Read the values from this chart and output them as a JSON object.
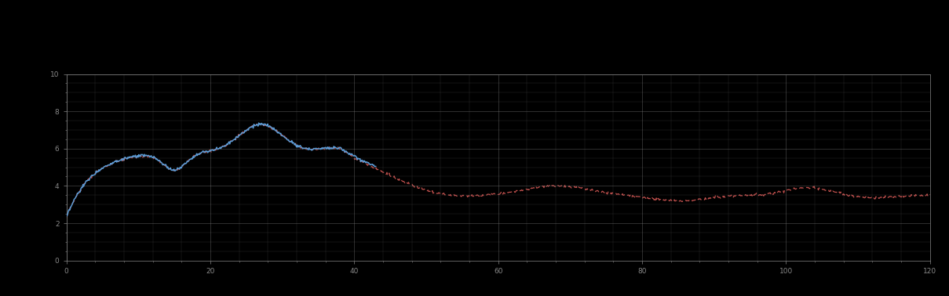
{
  "background_color": "#000000",
  "plot_bg_color": "#000000",
  "grid_color": "#888888",
  "line1_color": "#5b9bd5",
  "line2_color": "#c0504d",
  "figsize": [
    12.09,
    3.78
  ],
  "dpi": 100,
  "xlim": [
    0,
    120
  ],
  "ylim": [
    0,
    10
  ],
  "x_major_tick": 20,
  "y_major_tick": 2,
  "legend_line1_color": "#5b9bd5",
  "legend_line2_color": "#c0504d",
  "spine_color": "#888888"
}
